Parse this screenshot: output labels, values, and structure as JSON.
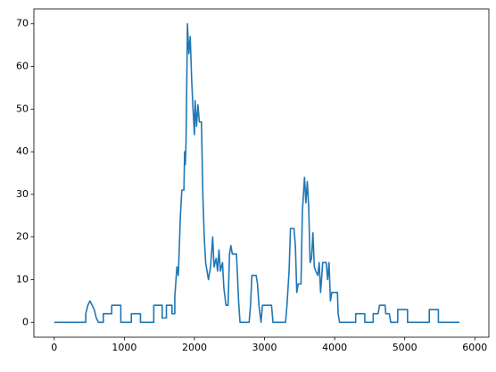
{
  "chart_data": {
    "type": "line",
    "color": "#1f77b4",
    "x": [
      0,
      450,
      450,
      480,
      510,
      570,
      600,
      630,
      700,
      700,
      820,
      820,
      950,
      950,
      1100,
      1100,
      1230,
      1230,
      1420,
      1420,
      1540,
      1540,
      1600,
      1600,
      1680,
      1680,
      1720,
      1720,
      1750,
      1770,
      1800,
      1820,
      1850,
      1860,
      1870,
      1880,
      1890,
      1900,
      1920,
      1940,
      1960,
      1980,
      2000,
      2010,
      2030,
      2050,
      2070,
      2100,
      2120,
      2140,
      2160,
      2180,
      2200,
      2230,
      2260,
      2280,
      2310,
      2330,
      2350,
      2370,
      2400,
      2420,
      2450,
      2480,
      2500,
      2520,
      2540,
      2600,
      2630,
      2650,
      2780,
      2800,
      2820,
      2880,
      2900,
      2920,
      2950,
      2970,
      3100,
      3120,
      3300,
      3320,
      3350,
      3370,
      3420,
      3440,
      3460,
      3480,
      3520,
      3540,
      3570,
      3590,
      3610,
      3630,
      3650,
      3670,
      3690,
      3710,
      3730,
      3760,
      3780,
      3800,
      3830,
      3880,
      3900,
      3920,
      3940,
      3960,
      4040,
      4050,
      4070,
      4300,
      4300,
      4430,
      4430,
      4550,
      4550,
      4620,
      4640,
      4720,
      4730,
      4780,
      4800,
      4900,
      4900,
      5040,
      5040,
      5350,
      5350,
      5480,
      5480,
      5780
    ],
    "values": [
      0,
      0,
      2,
      4,
      5,
      3,
      1,
      0,
      0,
      2,
      2,
      4,
      4,
      0,
      0,
      2,
      2,
      0,
      0,
      4,
      4,
      1,
      1,
      4,
      4,
      2,
      2,
      6,
      13,
      11,
      25,
      31,
      31,
      40,
      37,
      42,
      55,
      70,
      63,
      67,
      57,
      50,
      44,
      52,
      46,
      51,
      47,
      47,
      30,
      20,
      14,
      12,
      10,
      13,
      20,
      13,
      15,
      12,
      17,
      12,
      14,
      8,
      4,
      4,
      16,
      18,
      16,
      16,
      5,
      0,
      0,
      4,
      11,
      11,
      9,
      4,
      0,
      4,
      4,
      0,
      0,
      4,
      12,
      22,
      22,
      18,
      7,
      9,
      9,
      26,
      34,
      28,
      33,
      27,
      14,
      15,
      21,
      13,
      12,
      11,
      14,
      7,
      14,
      14,
      10,
      14,
      5,
      7,
      7,
      2,
      0,
      0,
      2,
      2,
      0,
      0,
      2,
      2,
      4,
      4,
      2,
      2,
      0,
      0,
      3,
      3,
      0,
      0,
      3,
      3,
      0,
      0
    ],
    "xlim": [
      -290,
      6200
    ],
    "ylim": [
      -3.5,
      73.5
    ],
    "xticks": [
      0,
      1000,
      2000,
      3000,
      4000,
      5000,
      6000
    ],
    "yticks": [
      0,
      10,
      20,
      30,
      40,
      50,
      60,
      70
    ]
  }
}
